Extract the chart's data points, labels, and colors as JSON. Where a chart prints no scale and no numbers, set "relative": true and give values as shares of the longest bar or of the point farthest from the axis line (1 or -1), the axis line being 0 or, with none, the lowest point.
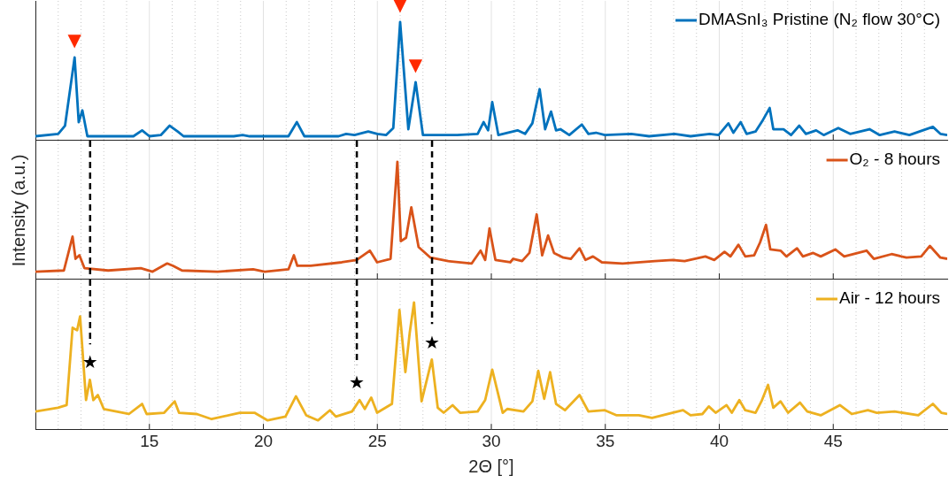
{
  "chart_data": [
    {
      "type": "line",
      "relative": true,
      "grid": "x",
      "legend": "top right",
      "tick_labels": false,
      "marker": "none",
      "xlim": [
        10,
        50
      ],
      "xticks": [
        {
          "value": 11,
          "label": null
        },
        {
          "value": 12,
          "label": null
        },
        {
          "value": 13,
          "label": null
        },
        {
          "value": 14,
          "label": null
        },
        15,
        {
          "value": 16,
          "label": null
        },
        {
          "value": 17,
          "label": null
        },
        {
          "value": 18,
          "label": null
        },
        {
          "value": 19,
          "label": null
        },
        20,
        {
          "value": 21,
          "label": null
        },
        {
          "value": 22,
          "label": null
        },
        {
          "value": 23,
          "label": null
        },
        {
          "value": 24,
          "label": null
        },
        25,
        {
          "value": 26,
          "label": null
        },
        {
          "value": 27,
          "label": null
        },
        {
          "value": 28,
          "label": null
        },
        {
          "value": 29,
          "label": null
        },
        30,
        {
          "value": 31,
          "label": null
        },
        {
          "value": 32,
          "label": null
        },
        {
          "value": 33,
          "label": null
        },
        {
          "value": 34,
          "label": null
        },
        35,
        {
          "value": 36,
          "label": null
        },
        {
          "value": 37,
          "label": null
        },
        {
          "value": 38,
          "label": null
        },
        {
          "value": 39,
          "label": null
        },
        40,
        {
          "value": 41,
          "label": null
        },
        {
          "value": 42,
          "label": null
        },
        {
          "value": 43,
          "label": null
        },
        {
          "value": 44,
          "label": null
        },
        45,
        {
          "value": 46,
          "label": null
        },
        {
          "value": 47,
          "label": null
        },
        {
          "value": 48,
          "label": null
        },
        {
          "value": 49,
          "label": null
        }
      ],
      "x": [
        10.0,
        11.0,
        11.3,
        11.72,
        11.9,
        12.06,
        12.28,
        14.3,
        14.68,
        15.0,
        15.5,
        15.89,
        16.24,
        16.5,
        18.7,
        19.09,
        19.4,
        21.1,
        21.47,
        21.8,
        23.3,
        23.63,
        24.0,
        24.6,
        25.0,
        25.38,
        25.7,
        26.0,
        26.36,
        26.68,
        27.0,
        28.5,
        29.4,
        29.66,
        29.86,
        30.04,
        30.31,
        31.15,
        31.48,
        31.8,
        32.12,
        32.36,
        32.62,
        32.84,
        33.03,
        33.42,
        33.97,
        34.26,
        34.59,
        34.98,
        36.14,
        36.92,
        38.03,
        38.74,
        39.58,
        39.97,
        40.4,
        40.62,
        40.94,
        41.2,
        41.59,
        41.92,
        42.21,
        42.37,
        42.82,
        43.15,
        43.51,
        43.8,
        44.25,
        44.58,
        45.22,
        45.74,
        46.59,
        47.04,
        47.69,
        48.34,
        49.37,
        49.7,
        50.0
      ],
      "series": [
        {
          "name": "DMASnI₃ Pristine (N₂ flow 30°C)",
          "color": "#0072bd",
          "values": [
            0.03,
            0.05,
            0.12,
            0.7,
            0.15,
            0.25,
            0.03,
            0.03,
            0.08,
            0.03,
            0.04,
            0.12,
            0.07,
            0.03,
            0.03,
            0.04,
            0.03,
            0.03,
            0.15,
            0.03,
            0.03,
            0.05,
            0.04,
            0.07,
            0.05,
            0.04,
            0.1,
            1.0,
            0.09,
            0.49,
            0.04,
            0.04,
            0.05,
            0.15,
            0.08,
            0.32,
            0.04,
            0.08,
            0.05,
            0.14,
            0.43,
            0.09,
            0.24,
            0.08,
            0.09,
            0.04,
            0.13,
            0.05,
            0.06,
            0.04,
            0.05,
            0.03,
            0.05,
            0.03,
            0.05,
            0.04,
            0.14,
            0.06,
            0.15,
            0.05,
            0.07,
            0.17,
            0.27,
            0.09,
            0.09,
            0.04,
            0.12,
            0.05,
            0.08,
            0.04,
            0.1,
            0.05,
            0.09,
            0.04,
            0.07,
            0.04,
            0.11,
            0.05,
            0.04
          ]
        }
      ],
      "annotations": [
        {
          "text": "▼",
          "x": 11.72,
          "y": 0.7
        },
        {
          "text": "▼",
          "x": 26.0,
          "y": 1.0
        },
        {
          "text": "▼",
          "x": 26.68,
          "y": 0.49
        }
      ]
    },
    {
      "type": "line",
      "relative": true,
      "grid": "x",
      "legend": "top right",
      "tick_labels": false,
      "marker": "none",
      "xlim": [
        10,
        50
      ],
      "ylabel": "Intensity (a.u.)",
      "xticks": [
        {
          "value": 11,
          "label": null
        },
        {
          "value": 12,
          "label": null
        },
        {
          "value": 13,
          "label": null
        },
        {
          "value": 14,
          "label": null
        },
        15,
        {
          "value": 16,
          "label": null
        },
        {
          "value": 17,
          "label": null
        },
        {
          "value": 18,
          "label": null
        },
        {
          "value": 19,
          "label": null
        },
        20,
        {
          "value": 21,
          "label": null
        },
        {
          "value": 22,
          "label": null
        },
        {
          "value": 23,
          "label": null
        },
        {
          "value": 24,
          "label": null
        },
        25,
        {
          "value": 26,
          "label": null
        },
        {
          "value": 27,
          "label": null
        },
        {
          "value": 28,
          "label": null
        },
        {
          "value": 29,
          "label": null
        },
        30,
        {
          "value": 31,
          "label": null
        },
        {
          "value": 32,
          "label": null
        },
        {
          "value": 33,
          "label": null
        },
        {
          "value": 34,
          "label": null
        },
        35,
        {
          "value": 36,
          "label": null
        },
        {
          "value": 37,
          "label": null
        },
        {
          "value": 38,
          "label": null
        },
        {
          "value": 39,
          "label": null
        },
        40,
        {
          "value": 41,
          "label": null
        },
        {
          "value": 42,
          "label": null
        },
        {
          "value": 43,
          "label": null
        },
        {
          "value": 44,
          "label": null
        },
        45,
        {
          "value": 46,
          "label": null
        },
        {
          "value": 47,
          "label": null
        },
        {
          "value": 48,
          "label": null
        },
        {
          "value": 49,
          "label": null
        }
      ],
      "x": [
        10.0,
        11.25,
        11.63,
        11.76,
        11.93,
        12.15,
        13.19,
        14.62,
        15.14,
        15.78,
        16.04,
        16.43,
        17.99,
        19.55,
        20.06,
        21.1,
        21.34,
        21.49,
        22.08,
        23.44,
        24.09,
        24.67,
        24.99,
        25.58,
        25.88,
        26.03,
        26.26,
        26.49,
        26.81,
        27.33,
        28.11,
        29.14,
        29.53,
        29.73,
        29.92,
        30.18,
        30.83,
        30.96,
        31.35,
        31.67,
        31.99,
        32.23,
        32.49,
        32.75,
        33.16,
        33.49,
        33.87,
        34.13,
        34.46,
        34.85,
        35.76,
        37.18,
        37.96,
        38.48,
        39.39,
        39.78,
        40.23,
        40.49,
        40.84,
        41.14,
        41.53,
        41.79,
        42.05,
        42.24,
        42.69,
        42.95,
        43.41,
        43.67,
        44.12,
        44.45,
        45.09,
        45.48,
        46.46,
        46.78,
        47.56,
        48.21,
        48.86,
        49.24,
        49.7,
        50.0
      ],
      "series": [
        {
          "name": "O₂ - 8 hours",
          "color": "#d95319",
          "values": [
            0.06,
            0.07,
            0.36,
            0.17,
            0.2,
            0.09,
            0.07,
            0.09,
            0.06,
            0.13,
            0.11,
            0.07,
            0.06,
            0.08,
            0.06,
            0.08,
            0.2,
            0.11,
            0.11,
            0.14,
            0.16,
            0.24,
            0.14,
            0.17,
            1.0,
            0.32,
            0.35,
            0.61,
            0.27,
            0.18,
            0.15,
            0.13,
            0.24,
            0.16,
            0.43,
            0.16,
            0.14,
            0.17,
            0.15,
            0.22,
            0.55,
            0.2,
            0.37,
            0.22,
            0.18,
            0.17,
            0.26,
            0.16,
            0.19,
            0.14,
            0.13,
            0.15,
            0.16,
            0.15,
            0.19,
            0.16,
            0.23,
            0.19,
            0.29,
            0.19,
            0.2,
            0.31,
            0.46,
            0.25,
            0.24,
            0.19,
            0.26,
            0.19,
            0.22,
            0.19,
            0.25,
            0.19,
            0.24,
            0.17,
            0.21,
            0.18,
            0.19,
            0.28,
            0.18,
            0.17
          ]
        }
      ],
      "ref_lines": [
        {
          "axis": "x",
          "value": 12.4,
          "color": "#000000",
          "line_style": "dashed"
        },
        {
          "axis": "x",
          "value": 24.1,
          "color": "#000000",
          "line_style": "dashed"
        },
        {
          "axis": "x",
          "value": 27.4,
          "color": "#000000",
          "line_style": "dashed"
        }
      ]
    },
    {
      "type": "line",
      "relative": true,
      "grid": "x",
      "legend": "top right",
      "tick_labels": "x",
      "marker": "none",
      "xlim": [
        10,
        50
      ],
      "xlabel": "2Θ [°]",
      "xticks": [
        {
          "value": 11,
          "label": null
        },
        {
          "value": 12,
          "label": null
        },
        {
          "value": 13,
          "label": null
        },
        {
          "value": 14,
          "label": null
        },
        15,
        {
          "value": 16,
          "label": null
        },
        {
          "value": 17,
          "label": null
        },
        {
          "value": 18,
          "label": null
        },
        {
          "value": 19,
          "label": null
        },
        20,
        {
          "value": 21,
          "label": null
        },
        {
          "value": 22,
          "label": null
        },
        {
          "value": 23,
          "label": null
        },
        {
          "value": 24,
          "label": null
        },
        25,
        {
          "value": 26,
          "label": null
        },
        {
          "value": 27,
          "label": null
        },
        {
          "value": 28,
          "label": null
        },
        {
          "value": 29,
          "label": null
        },
        30,
        {
          "value": 31,
          "label": null
        },
        {
          "value": 32,
          "label": null
        },
        {
          "value": 33,
          "label": null
        },
        {
          "value": 34,
          "label": null
        },
        35,
        {
          "value": 36,
          "label": null
        },
        {
          "value": 37,
          "label": null
        },
        {
          "value": 38,
          "label": null
        },
        {
          "value": 39,
          "label": null
        },
        40,
        {
          "value": 41,
          "label": null
        },
        {
          "value": 42,
          "label": null
        },
        {
          "value": 43,
          "label": null
        },
        {
          "value": 44,
          "label": null
        },
        45,
        {
          "value": 46,
          "label": null
        },
        {
          "value": 47,
          "label": null
        },
        {
          "value": 48,
          "label": null
        },
        {
          "value": 49,
          "label": null
        }
      ],
      "x": [
        10.0,
        10.99,
        11.37,
        11.63,
        11.83,
        11.96,
        12.22,
        12.39,
        12.54,
        12.74,
        13.0,
        14.1,
        14.68,
        14.88,
        15.65,
        16.11,
        16.3,
        17.08,
        17.73,
        18.96,
        19.61,
        20.19,
        20.97,
        21.43,
        21.88,
        22.4,
        22.92,
        23.18,
        23.89,
        24.22,
        24.45,
        24.73,
        24.99,
        25.64,
        25.97,
        26.23,
        26.42,
        26.61,
        26.94,
        27.39,
        27.65,
        27.91,
        28.3,
        28.63,
        29.4,
        29.73,
        30.04,
        30.5,
        30.7,
        31.41,
        31.8,
        32.06,
        32.32,
        32.58,
        32.84,
        33.23,
        33.87,
        34.26,
        34.98,
        35.5,
        36.47,
        37.05,
        38.41,
        38.74,
        39.26,
        39.54,
        39.84,
        40.32,
        40.55,
        40.88,
        41.14,
        41.59,
        41.85,
        42.14,
        42.37,
        42.69,
        43.02,
        43.54,
        43.86,
        44.45,
        45.29,
        45.81,
        46.52,
        46.91,
        47.69,
        48.73,
        49.37,
        49.74,
        50.0
      ],
      "series": [
        {
          "name": "Air - 12 hours",
          "color": "#edb120",
          "values": [
            0.14,
            0.17,
            0.19,
            0.8,
            0.78,
            0.89,
            0.23,
            0.39,
            0.23,
            0.27,
            0.16,
            0.12,
            0.2,
            0.12,
            0.13,
            0.22,
            0.13,
            0.12,
            0.08,
            0.13,
            0.13,
            0.07,
            0.1,
            0.26,
            0.11,
            0.07,
            0.15,
            0.1,
            0.14,
            0.23,
            0.16,
            0.25,
            0.13,
            0.2,
            0.94,
            0.45,
            0.76,
            1.0,
            0.22,
            0.55,
            0.17,
            0.13,
            0.19,
            0.13,
            0.14,
            0.23,
            0.47,
            0.13,
            0.16,
            0.14,
            0.22,
            0.46,
            0.24,
            0.45,
            0.2,
            0.15,
            0.27,
            0.14,
            0.15,
            0.11,
            0.11,
            0.09,
            0.15,
            0.11,
            0.12,
            0.18,
            0.13,
            0.19,
            0.13,
            0.23,
            0.15,
            0.13,
            0.22,
            0.35,
            0.17,
            0.22,
            0.13,
            0.21,
            0.14,
            0.11,
            0.19,
            0.12,
            0.15,
            0.13,
            0.14,
            0.11,
            0.2,
            0.13,
            0.12
          ]
        }
      ],
      "ref_lines": [
        {
          "axis": "x",
          "value": 12.4,
          "color": "#000000",
          "line_style": "dashed"
        },
        {
          "axis": "x",
          "value": 24.1,
          "color": "#000000",
          "line_style": "dashed"
        },
        {
          "axis": "x",
          "value": 27.4,
          "color": "#000000",
          "line_style": "dashed"
        }
      ],
      "annotations": [
        {
          "text": "★",
          "x": 12.4,
          "y": 0.39
        },
        {
          "text": "★",
          "x": 24.1,
          "y": 0.23
        },
        {
          "text": "★",
          "x": 27.4,
          "y": 0.55
        }
      ]
    }
  ]
}
